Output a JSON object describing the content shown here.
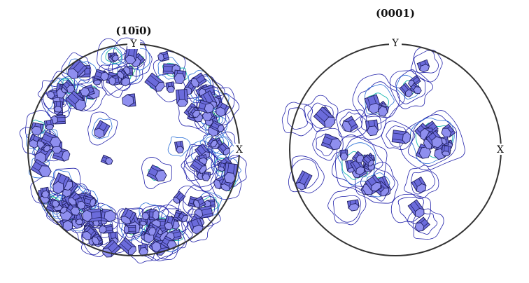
{
  "figure": {
    "colors": {
      "crystal_top": "#8f8fef",
      "crystal_side": "#6b6bdb",
      "contour_low": "#2222aa",
      "contour_mid": "#2a6fd6",
      "contour_high": "#18b8b0",
      "contour_peak": "#2ec27a",
      "rim": "#333333"
    },
    "poles": [
      {
        "id": "left",
        "title": "(10ī0)",
        "axis_y": "Y",
        "axis_x": "X",
        "pattern": "ring",
        "crystal_count": 150
      },
      {
        "id": "right",
        "title": "(0001)",
        "axis_y": "Y",
        "axis_x": "X",
        "pattern": "center-cluster",
        "crystal_count": 55
      }
    ]
  }
}
